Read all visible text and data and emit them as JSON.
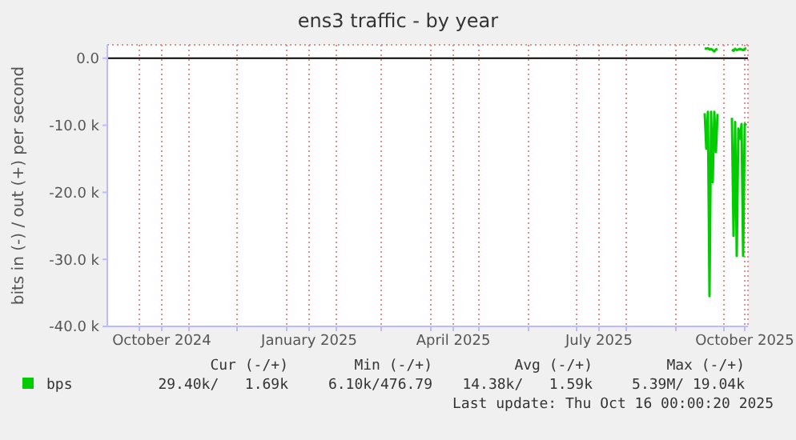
{
  "chart_data": {
    "type": "line",
    "title": "ens3 traffic - by year",
    "ylabel": "bits in (-) / out (+) per second",
    "x": [
      "2025-09-19",
      "2025-09-20",
      "2025-09-21",
      "2025-09-22",
      "2025-09-23",
      "2025-09-24",
      "2025-09-25",
      "2025-09-26",
      "2025-09-27",
      "2025-09-28",
      "2025-10-05",
      "2025-10-06",
      "2025-10-07",
      "2025-10-08",
      "2025-10-09",
      "2025-10-10",
      "2025-10-11",
      "2025-10-12",
      "2025-10-13",
      "2025-10-14",
      "2025-10-15"
    ],
    "series": [
      {
        "name": "bps",
        "color": "#00cc00",
        "values": [
          -8200,
          -13500,
          -8000,
          -35500,
          -8000,
          -18500,
          -8000,
          -14000,
          -8300,
          null,
          null,
          -8900,
          -26500,
          -9500,
          -29500,
          -10500,
          -12000,
          -9800,
          -29500,
          -9800,
          -10000
        ]
      },
      {
        "color": "#00cc00",
        "values": [
          1500,
          1400,
          1500,
          1300,
          1400,
          1200,
          1000,
          1300,
          1400,
          null,
          null,
          1300,
          1100,
          1400,
          1200,
          1300,
          1400,
          1300,
          1200,
          1400,
          1500
        ]
      }
    ],
    "xlim": [
      "2024-09-11",
      "2025-10-16"
    ],
    "xticks": [
      {
        "value": "2024-10-01",
        "label": null
      },
      {
        "value": "2024-10-15",
        "label": "October 2024"
      },
      {
        "value": "2024-11-01",
        "label": null
      },
      {
        "value": "2024-12-01",
        "label": null
      },
      {
        "value": "2025-01-01",
        "label": null
      },
      {
        "value": "2025-01-15",
        "label": "January 2025"
      },
      {
        "value": "2025-02-01",
        "label": null
      },
      {
        "value": "2025-03-01",
        "label": null
      },
      {
        "value": "2025-04-01",
        "label": null
      },
      {
        "value": "2025-04-15",
        "label": "April 2025"
      },
      {
        "value": "2025-05-01",
        "label": null
      },
      {
        "value": "2025-06-01",
        "label": null
      },
      {
        "value": "2025-07-01",
        "label": null
      },
      {
        "value": "2025-07-15",
        "label": "July 2025"
      },
      {
        "value": "2025-08-01",
        "label": null
      },
      {
        "value": "2025-09-01",
        "label": null
      },
      {
        "value": "2025-10-01",
        "label": null
      },
      {
        "value": "2025-10-14",
        "label": "October 2025"
      }
    ],
    "ylim": [
      -40000,
      2000
    ],
    "yticks": [
      {
        "value": 0,
        "label": "0.0"
      },
      {
        "value": -10000,
        "label": "-10.0 k"
      },
      {
        "value": -20000,
        "label": "-20.0 k"
      },
      {
        "value": -30000,
        "label": "-30.0 k"
      },
      {
        "value": -40000,
        "label": "-40.0 k"
      }
    ],
    "ref_lines": [
      {
        "axis": "y",
        "value": 0,
        "color": "#000000"
      }
    ],
    "grid": true,
    "legend": "bottom",
    "marker": "none",
    "line_style": "solid",
    "annotations": [
      "Cur (-/+)",
      "Min (-/+)",
      "Avg (-/+)",
      "Max (-/+)",
      "29.40k/   1.69k",
      "6.10k/476.79",
      "14.38k/   1.59k",
      "5.39M/ 19.04k",
      "Last update: Thu Oct 16 00:00:20 2025"
    ]
  }
}
